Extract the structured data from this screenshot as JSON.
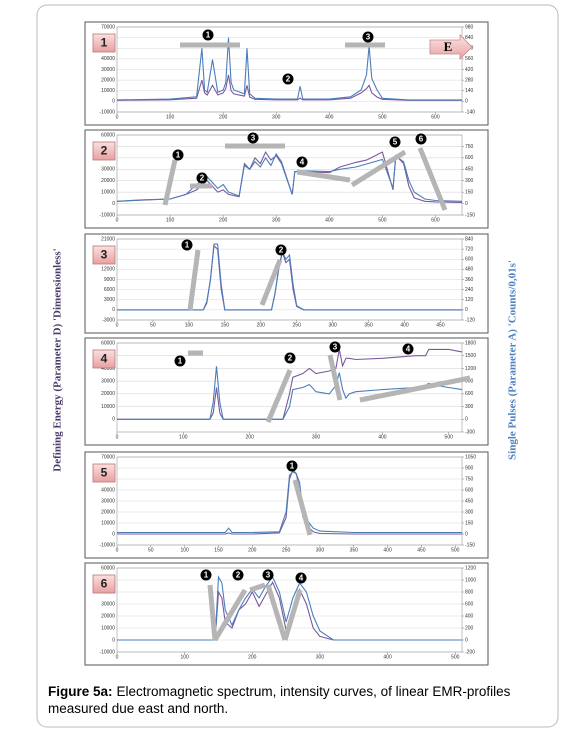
{
  "y_label": "Defining Energy (Parameter D) 'Dimensionless'",
  "y2_label": "Single Pulses (Parameter A) 'Counts/0,01s'",
  "caption": {
    "label": "Figure 5a:",
    "text": "Electromagnetic spectrum, intensity curves, of linear EMR-profiles measured due east and north."
  },
  "chart_data": [
    {
      "type": "line",
      "label": "1",
      "markers": [
        "1",
        "2",
        "3"
      ],
      "arrow_label": "E",
      "xlim": [
        0,
        650
      ],
      "xticks": [
        0,
        100,
        200,
        300,
        400,
        500,
        600
      ],
      "ylim": [
        -10000,
        70000
      ],
      "yticks": [
        70000,
        60000,
        50000,
        40000,
        30000,
        20000,
        10000,
        0,
        -10000
      ],
      "y2lim": [
        -140,
        980
      ],
      "y2ticks": [
        980,
        840,
        700,
        560,
        420,
        280,
        140,
        0,
        -140
      ],
      "grid": true,
      "x": [
        0,
        100,
        150,
        160,
        165,
        170,
        180,
        190,
        200,
        205,
        210,
        215,
        220,
        240,
        245,
        250,
        260,
        300,
        340,
        345,
        350,
        400,
        440,
        460,
        470,
        475,
        480,
        490,
        500,
        550,
        650
      ],
      "series": [
        {
          "color": "#7b5a9c",
          "values": [
            1000,
            1500,
            3000,
            20000,
            8000,
            6000,
            15000,
            6000,
            8000,
            12000,
            25000,
            10000,
            7000,
            5000,
            15000,
            4000,
            2000,
            1500,
            1500,
            3000,
            1500,
            1500,
            3000,
            8000,
            12000,
            15000,
            8000,
            4000,
            2000,
            1000,
            1000
          ]
        },
        {
          "color": "#4a7ebb",
          "axis": "y2",
          "values": [
            20,
            30,
            60,
            700,
            150,
            120,
            550,
            120,
            150,
            250,
            840,
            250,
            150,
            100,
            700,
            100,
            40,
            30,
            30,
            200,
            30,
            30,
            60,
            150,
            350,
            730,
            300,
            150,
            40,
            20,
            20
          ]
        }
      ]
    },
    {
      "type": "line",
      "label": "2",
      "markers": [
        "1",
        "2",
        "3",
        "4",
        "5",
        "6"
      ],
      "xlim": [
        0,
        650
      ],
      "xticks": [
        0,
        100,
        200,
        300,
        400,
        500,
        600
      ],
      "ylim": [
        -10000,
        60000
      ],
      "yticks": [
        60000,
        50000,
        40000,
        30000,
        20000,
        10000,
        0,
        -10000
      ],
      "y2lim": [
        -150,
        900
      ],
      "y2ticks": [
        750,
        600,
        450,
        300,
        150,
        0,
        -150
      ],
      "grid": true,
      "x": [
        0,
        50,
        100,
        130,
        150,
        170,
        190,
        200,
        210,
        230,
        240,
        250,
        260,
        270,
        280,
        290,
        300,
        310,
        330,
        335,
        350,
        400,
        420,
        450,
        470,
        500,
        520,
        525,
        530,
        540,
        550,
        560,
        580,
        600,
        650
      ],
      "series": [
        {
          "color": "#7b5a9c",
          "values": [
            2000,
            3000,
            4000,
            8000,
            12000,
            20000,
            10000,
            12000,
            8000,
            6000,
            35000,
            30000,
            40000,
            35000,
            45000,
            38000,
            42000,
            35000,
            8000,
            28000,
            28000,
            27000,
            32000,
            36000,
            38000,
            45000,
            12000,
            42000,
            40000,
            35000,
            15000,
            5000,
            2000,
            1500,
            1000
          ]
        },
        {
          "color": "#4a7ebb",
          "axis": "y2",
          "values": [
            30,
            50,
            60,
            120,
            250,
            350,
            200,
            250,
            150,
            100,
            500,
            450,
            550,
            480,
            600,
            500,
            650,
            550,
            120,
            420,
            430,
            420,
            450,
            480,
            520,
            580,
            200,
            600,
            600,
            550,
            300,
            150,
            60,
            40,
            30
          ]
        }
      ]
    },
    {
      "type": "line",
      "label": "3",
      "markers": [
        "1",
        "2"
      ],
      "xlim": [
        0,
        480
      ],
      "xticks": [
        0,
        50,
        100,
        150,
        200,
        250,
        300,
        350,
        400,
        450
      ],
      "ylim": [
        -3000,
        21000
      ],
      "yticks": [
        21000,
        18000,
        15000,
        12000,
        9000,
        6000,
        3000,
        0,
        -3000
      ],
      "y2lim": [
        -120,
        840
      ],
      "y2ticks": [
        840,
        720,
        600,
        480,
        360,
        240,
        120,
        0,
        -120
      ],
      "grid": true,
      "x": [
        0,
        100,
        120,
        125,
        130,
        135,
        140,
        145,
        150,
        160,
        200,
        215,
        220,
        225,
        230,
        235,
        240,
        245,
        250,
        260,
        300,
        480
      ],
      "series": [
        {
          "color": "#7b5a9c",
          "values": [
            0,
            0,
            0,
            2000,
            9000,
            19000,
            18000,
            6000,
            0,
            0,
            0,
            0,
            5000,
            12000,
            17000,
            14000,
            15000,
            6000,
            1000,
            0,
            0,
            0
          ]
        },
        {
          "color": "#4a7ebb",
          "axis": "y2",
          "values": [
            0,
            0,
            0,
            100,
            350,
            780,
            780,
            300,
            0,
            0,
            0,
            0,
            200,
            500,
            690,
            600,
            650,
            300,
            50,
            0,
            0,
            0
          ]
        }
      ]
    },
    {
      "type": "line",
      "label": "4",
      "markers": [
        "1",
        "2",
        "3",
        "4"
      ],
      "xlim": [
        0,
        520
      ],
      "xticks": [
        0,
        100,
        200,
        300,
        400,
        500
      ],
      "ylim": [
        -10000,
        60000
      ],
      "yticks": [
        60000,
        50000,
        40000,
        30000,
        20000,
        10000,
        0
      ],
      "y2lim": [
        -300,
        1800
      ],
      "y2ticks": [
        1800,
        1500,
        1200,
        900,
        600,
        300,
        0,
        -300
      ],
      "grid": true,
      "x": [
        0,
        100,
        140,
        145,
        150,
        155,
        160,
        200,
        250,
        260,
        265,
        280,
        290,
        300,
        320,
        330,
        335,
        340,
        345,
        350,
        360,
        400,
        450,
        465,
        470,
        480,
        500,
        520
      ],
      "series": [
        {
          "color": "#7b5a9c",
          "values": [
            0,
            0,
            0,
            5000,
            25000,
            5000,
            0,
            0,
            0,
            20000,
            33000,
            36000,
            40000,
            36000,
            38000,
            40000,
            55000,
            42000,
            48000,
            48000,
            47000,
            48000,
            50000,
            50000,
            55000,
            55000,
            55000,
            53000
          ]
        },
        {
          "color": "#4a7ebb",
          "axis": "y2",
          "values": [
            0,
            0,
            0,
            400,
            1250,
            400,
            0,
            0,
            0,
            300,
            700,
            750,
            820,
            650,
            600,
            800,
            1100,
            700,
            500,
            600,
            650,
            700,
            750,
            800,
            850,
            800,
            750,
            700
          ]
        }
      ]
    },
    {
      "type": "line",
      "label": "5",
      "markers": [
        "1"
      ],
      "xlim": [
        0,
        510
      ],
      "xticks": [
        0,
        50,
        100,
        150,
        200,
        250,
        300,
        350,
        400,
        450,
        500
      ],
      "ylim": [
        -10000,
        70000
      ],
      "yticks": [
        70000,
        60000,
        50000,
        40000,
        30000,
        20000,
        10000,
        0,
        -10000
      ],
      "y2lim": [
        -150,
        1050
      ],
      "y2ticks": [
        1050,
        900,
        750,
        600,
        450,
        300,
        150,
        0,
        -150
      ],
      "grid": true,
      "x": [
        0,
        100,
        160,
        165,
        170,
        200,
        240,
        250,
        255,
        260,
        265,
        270,
        275,
        280,
        290,
        300,
        350,
        510
      ],
      "series": [
        {
          "color": "#7b5a9c",
          "values": [
            0,
            0,
            0,
            1000,
            0,
            0,
            1000,
            15000,
            50000,
            58000,
            55000,
            40000,
            15000,
            8000,
            2000,
            500,
            0,
            0
          ]
        },
        {
          "color": "#4a7ebb",
          "axis": "y2",
          "values": [
            20,
            20,
            20,
            80,
            20,
            20,
            30,
            300,
            800,
            850,
            820,
            700,
            300,
            200,
            80,
            40,
            20,
            20
          ]
        }
      ]
    },
    {
      "type": "line",
      "label": "6",
      "markers": [
        "1",
        "2",
        "3",
        "4"
      ],
      "xlim": [
        0,
        510
      ],
      "xticks": [
        0,
        100,
        200,
        300,
        400,
        500
      ],
      "ylim": [
        -10000,
        60000
      ],
      "yticks": [
        60000,
        50000,
        40000,
        30000,
        20000,
        10000,
        0,
        -10000
      ],
      "y2lim": [
        -200,
        1200
      ],
      "y2ticks": [
        1200,
        1000,
        800,
        600,
        400,
        200,
        0,
        -200
      ],
      "grid": true,
      "x": [
        0,
        100,
        145,
        150,
        155,
        160,
        170,
        180,
        190,
        200,
        210,
        220,
        230,
        240,
        250,
        260,
        270,
        280,
        290,
        300,
        320,
        510
      ],
      "series": [
        {
          "color": "#7b5a9c",
          "values": [
            0,
            0,
            0,
            40000,
            35000,
            15000,
            10000,
            25000,
            30000,
            40000,
            28000,
            38000,
            48000,
            35000,
            8000,
            20000,
            42000,
            30000,
            10000,
            3000,
            0,
            0
          ]
        },
        {
          "color": "#4a7ebb",
          "axis": "y2",
          "values": [
            0,
            0,
            0,
            1050,
            950,
            500,
            250,
            500,
            700,
            850,
            700,
            900,
            1050,
            800,
            300,
            700,
            950,
            800,
            400,
            150,
            0,
            0
          ]
        }
      ]
    }
  ]
}
